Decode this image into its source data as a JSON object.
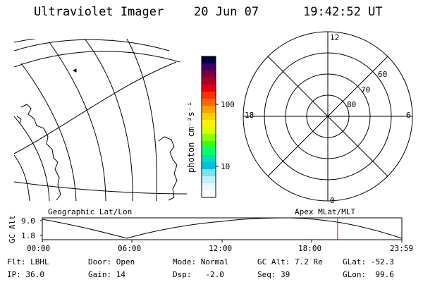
{
  "header": {
    "instrument": "Ultraviolet Imager",
    "date": "20 Jun 07",
    "time": "19:42:52 UT"
  },
  "colorbar": {
    "unit_label": "photon cm⁻²s⁻¹",
    "ticks": [
      "100",
      "10"
    ],
    "palette": [
      "#000040",
      "#3c0060",
      "#7a0040",
      "#b00020",
      "#e00010",
      "#ff3000",
      "#ff6a00",
      "#ffa000",
      "#ffd000",
      "#fff200",
      "#d8ff00",
      "#8cff00",
      "#30ff20",
      "#00ff70",
      "#00e0b0",
      "#00c0e0",
      "#80e0f0",
      "#c0f0f8",
      "#e8f8fc",
      "#ffffff"
    ]
  },
  "polar_plot": {
    "mlt_labels": [
      "12",
      "18",
      "6",
      "0"
    ],
    "lat_labels": [
      "60",
      "70",
      "80"
    ]
  },
  "map": {
    "label_left": "Geographic Lat/Lon",
    "label_right": "Apex MLat/MLT"
  },
  "altitude_plot": {
    "ylabel": "GC Alt",
    "yticks": [
      "9.0",
      "1.8"
    ],
    "xticks": [
      "00:00",
      "06:00",
      "12:00",
      "18:00",
      "23:59"
    ],
    "current_time_hours": 19.71,
    "marker_color": "#ff0000"
  },
  "footer": {
    "flt": "Flt: LBHL",
    "ip": "IP: 36.0",
    "door": "Door: Open",
    "gain": "Gain: 14",
    "mode": "Mode: Normal",
    "dsp": "Dsp:   -2.0",
    "gc_alt": "GC Alt: 7.2 Re",
    "seq": "Seq: 39",
    "glat": "GLat: -52.3",
    "glon": "GLon:  99.6"
  }
}
